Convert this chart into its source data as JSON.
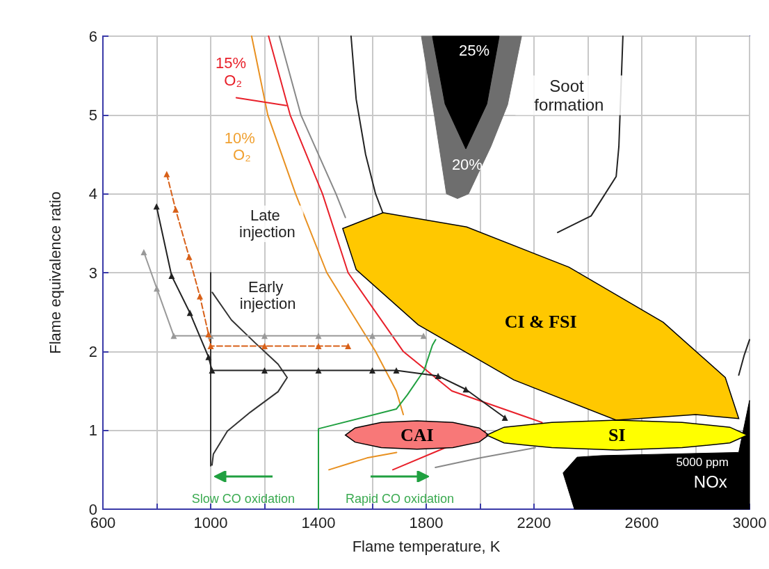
{
  "chart_data": {
    "type": "line",
    "xlabel": "Flame temperature, K",
    "ylabel": "Flame equivalence ratio",
    "xlim": [
      600,
      3000
    ],
    "ylim": [
      0,
      6
    ],
    "xticks": [
      600,
      {
        "value": 800,
        "label": null
      },
      1000,
      {
        "value": 1200,
        "label": null
      },
      1400,
      {
        "value": 1600,
        "label": null
      },
      1800,
      {
        "value": 2000,
        "label": null
      },
      2200,
      {
        "value": 2400,
        "label": null
      },
      2600,
      {
        "value": 2800,
        "label": null
      },
      3000
    ],
    "yticks": [
      0,
      1,
      2,
      3,
      4,
      5,
      6
    ],
    "grid": true,
    "legend": false,
    "marker": "none",
    "line_style": "solid",
    "series": [
      {
        "color": "#222222",
        "x": [
          1521,
          1540,
          1575,
          1612,
          1640
        ],
        "values": [
          6,
          5.2,
          4.5,
          4.0,
          3.75
        ]
      },
      {
        "color": "#222222",
        "x": [
          2530,
          2515,
          2505,
          2412,
          2288
        ],
        "values": [
          6,
          4.6,
          4.22,
          3.72,
          3.51
        ]
      },
      {
        "type": "area",
        "color": "#6e6e6e",
        "x": [
          1782,
          1830,
          1875,
          1916,
          1957,
          2040,
          2102,
          2154
        ],
        "values": [
          6,
          5.0,
          4.0,
          3.94,
          4.0,
          4.6,
          5.13,
          6
        ]
      },
      {
        "type": "area",
        "color": "#000000",
        "x": [
          1823,
          1870,
          1947,
          2025,
          2071
        ],
        "values": [
          6,
          5.14,
          4.57,
          5.14,
          6
        ]
      },
      {
        "type": "area",
        "color": "#000000",
        "x": [
          2350,
          2308,
          2360,
          2450,
          2960,
          3000,
          3000
        ],
        "values": [
          0,
          0.46,
          0.66,
          0.68,
          0.72,
          1.38,
          0
        ]
      },
      {
        "color": "#222222",
        "x": [
          2960,
          2980,
          3000
        ],
        "values": [
          1.7,
          1.95,
          2.15
        ]
      },
      {
        "color": "#e8202a",
        "x": [
          1215,
          1295,
          1415,
          1510,
          1715,
          1895,
          2230
        ],
        "values": [
          6,
          5,
          4,
          3,
          2,
          1.5,
          1.1
        ]
      },
      {
        "color": "#e89020",
        "x": [
          1152,
          1212,
          1315,
          1431,
          1612,
          1689,
          1715
        ],
        "values": [
          6,
          5,
          4,
          3,
          2,
          1.5,
          1.2
        ]
      },
      {
        "color": "#888888",
        "x": [
          1255,
          1335,
          1465,
          1500
        ],
        "values": [
          6,
          5,
          4,
          3.7
        ]
      },
      {
        "color": "#e8202a",
        "x": [
          1095,
          1281
        ],
        "values": [
          5.22,
          5.12
        ]
      },
      {
        "color": "#e8202a",
        "x": [
          1676,
          1850,
          2019
        ],
        "values": [
          0.5,
          0.75,
          0.99
        ]
      },
      {
        "color": "#e89020",
        "x": [
          1439,
          1580,
          1690
        ],
        "values": [
          0.5,
          0.65,
          0.72
        ]
      },
      {
        "color": "#888888",
        "x": [
          1834,
          2000,
          2205
        ],
        "values": [
          0.53,
          0.65,
          0.78
        ]
      },
      {
        "color": "#20a040",
        "x": [
          1400,
          1400,
          1689,
          1730,
          1792,
          1823,
          1835
        ],
        "values": [
          0,
          1.02,
          1.27,
          1.45,
          1.76,
          2.08,
          2.15
        ]
      },
      {
        "color": "#333333",
        "x": [
          1000,
          1000
        ],
        "values": [
          0.55,
          3
        ]
      },
      {
        "color": "#333333",
        "x": [
          1006,
          1077,
          1165,
          1250,
          1284,
          1250,
          1147,
          1062,
          1010,
          1005
        ],
        "values": [
          2.75,
          2.4,
          2.11,
          1.84,
          1.67,
          1.49,
          1.23,
          0.99,
          0.7,
          0.56
        ]
      },
      {
        "color": "#999999",
        "marker": "triangle",
        "x": [
          752,
          800,
          863,
          1000,
          1200,
          1400,
          1600,
          1790
        ],
        "values": [
          3.26,
          2.8,
          2.2,
          2.2,
          2.2,
          2.2,
          2.2,
          2.2
        ]
      },
      {
        "color": "#d86018",
        "marker": "triangle",
        "line_style": "dashed",
        "x": [
          837,
          870,
          920,
          960,
          992,
          1000,
          1200,
          1400,
          1510
        ],
        "values": [
          4.25,
          3.8,
          3.2,
          2.7,
          2.22,
          2.07,
          2.07,
          2.07,
          2.07
        ]
      },
      {
        "color": "#222222",
        "marker": "triangle",
        "x": [
          799,
          855,
          923,
          992,
          1005,
          1200,
          1400,
          1600,
          1689,
          1844,
          1947,
          2092
        ],
        "values": [
          3.84,
          2.96,
          2.49,
          1.93,
          1.76,
          1.76,
          1.76,
          1.76,
          1.76,
          1.69,
          1.52,
          1.16
        ]
      },
      {
        "type": "area",
        "name": "CI & FSI",
        "color": "#ffc800",
        "x": [
          2960,
          2800,
          2505,
          2125,
          1770,
          1540,
          1490,
          1640,
          1950,
          2330,
          2680,
          2910
        ],
        "values": [
          1.15,
          1.2,
          1.13,
          1.64,
          2.34,
          3.04,
          3.56,
          3.76,
          3.58,
          3.07,
          2.37,
          1.67
        ]
      },
      {
        "type": "area",
        "name": "CAI",
        "color": "#f87878",
        "x": [
          2032,
          1996,
          1899,
          1766,
          1633,
          1536,
          1500,
          1536,
          1633,
          1766,
          1899,
          1996
        ],
        "values": [
          0.94,
          1.03,
          1.1,
          1.12,
          1.1,
          1.03,
          0.94,
          0.85,
          0.78,
          0.76,
          0.78,
          0.85
        ]
      },
      {
        "type": "area",
        "name": "SI",
        "color": "#ffff00",
        "x": [
          2992,
          2927,
          2750,
          2508,
          2266,
          2089,
          2024,
          2089,
          2266,
          2508,
          2750,
          2927
        ],
        "values": [
          0.94,
          1.04,
          1.1,
          1.13,
          1.1,
          1.04,
          0.94,
          0.84,
          0.78,
          0.75,
          0.78,
          0.84
        ]
      }
    ],
    "annotations": [
      "15% O₂",
      "10% O₂",
      "Late injection",
      "Early injection",
      "Soot formation",
      "25%",
      "20%",
      "5000 ppm",
      "NOx",
      "Slow CO oxidation",
      "Rapid CO oxidation"
    ]
  }
}
